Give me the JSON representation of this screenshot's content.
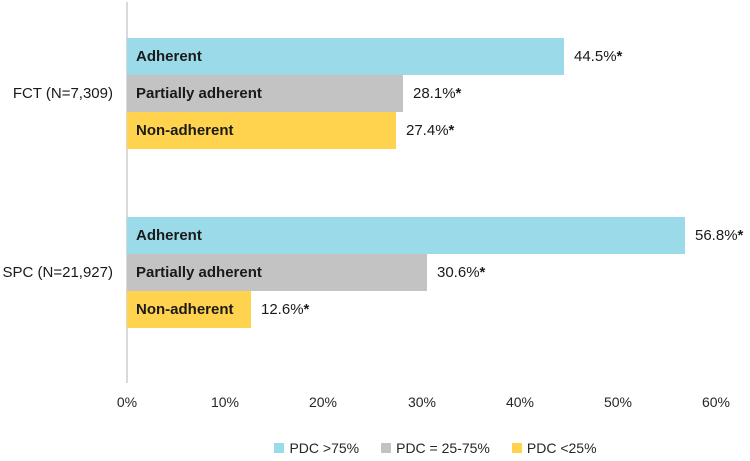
{
  "colors": {
    "blue": "#9BDBE9",
    "gray": "#C3C3C3",
    "yellow": "#FFD34D",
    "axis_line": "#D9D9D9",
    "text": "#1A1A1A"
  },
  "chart_data": {
    "type": "bar",
    "orientation": "horizontal",
    "title": "",
    "xlabel": "",
    "ylabel": "",
    "xlim": [
      0,
      60
    ],
    "x_tick_labels": [
      "0%",
      "10%",
      "20%",
      "30%",
      "40%",
      "50%",
      "60%"
    ],
    "grid": false,
    "legend_position": "bottom",
    "groups": [
      {
        "label": "FCT (N=7,309)",
        "bars": [
          {
            "category": "Adherent",
            "value": 44.5,
            "value_label": "44.5%",
            "significance": "*",
            "color": "blue",
            "series": "PDC >75%"
          },
          {
            "category": "Partially adherent",
            "value": 28.1,
            "value_label": "28.1%",
            "significance": "*",
            "color": "gray",
            "series": "PDC = 25-75%"
          },
          {
            "category": "Non-adherent",
            "value": 27.4,
            "value_label": "27.4%",
            "significance": "*",
            "color": "yellow",
            "series": "PDC <25%"
          }
        ]
      },
      {
        "label": "SPC (N=21,927)",
        "bars": [
          {
            "category": "Adherent",
            "value": 56.8,
            "value_label": "56.8%",
            "significance": "*",
            "color": "blue",
            "series": "PDC >75%"
          },
          {
            "category": "Partially adherent",
            "value": 30.6,
            "value_label": "30.6%",
            "significance": "*",
            "color": "gray",
            "series": "PDC = 25-75%"
          },
          {
            "category": "Non-adherent",
            "value": 12.6,
            "value_label": "12.6%",
            "significance": "*",
            "color": "yellow",
            "series": "PDC <25%"
          }
        ]
      }
    ],
    "legend": [
      {
        "label": "PDC >75%",
        "color": "blue"
      },
      {
        "label": "PDC = 25-75%",
        "color": "gray"
      },
      {
        "label": "PDC <25%",
        "color": "yellow"
      }
    ]
  }
}
